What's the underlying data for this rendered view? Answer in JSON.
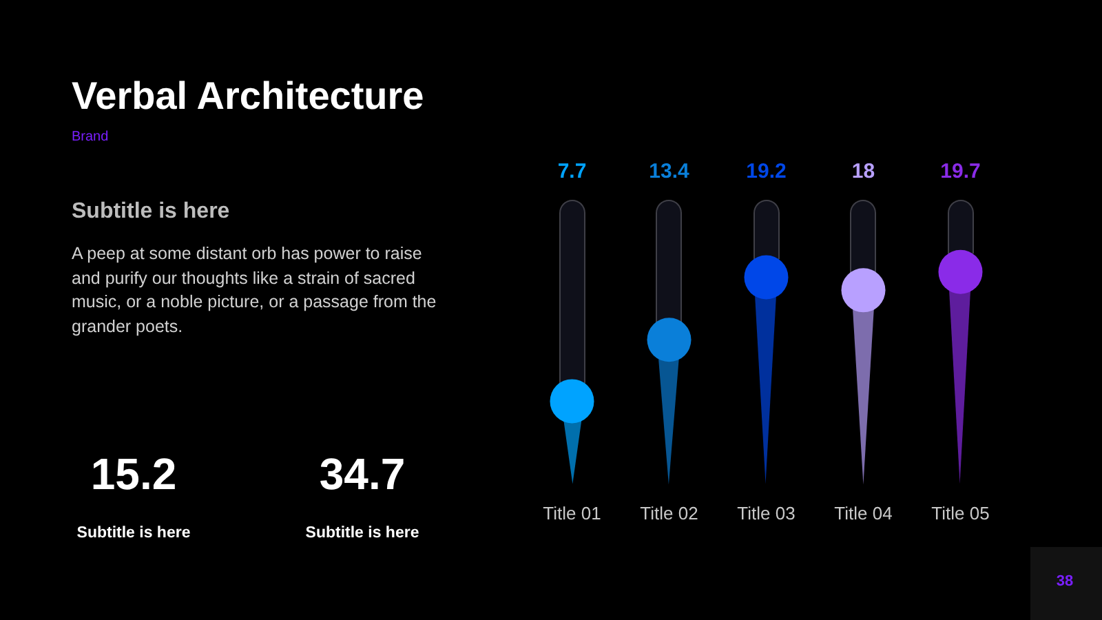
{
  "chart_data": [
    {
      "type": "other",
      "title": "Verbal Architecture",
      "subtitle": "Brand",
      "annotations": [
        "Subtitle is here",
        "A peep at some distant orb has power to raise and purify our thoughts like a strain of sacred music, or a noble picture, or a passage from the grander poets.",
        "15.2",
        "Subtitle is here",
        "34.7",
        "Subtitle is here",
        "38"
      ]
    },
    {
      "type": "lollipop",
      "categories": [
        "Title 01",
        "Title 02",
        "Title 03",
        "Title 04",
        "Title 05"
      ],
      "values": [
        7.7,
        13.4,
        19.2,
        18,
        19.7
      ],
      "colors": [
        "#00a3ff",
        "#0a7fd9",
        "#0047e8",
        "#b8a0ff",
        "#8a2be8"
      ],
      "data_labels": true,
      "marker": "circle",
      "tick_labels": "x"
    }
  ]
}
